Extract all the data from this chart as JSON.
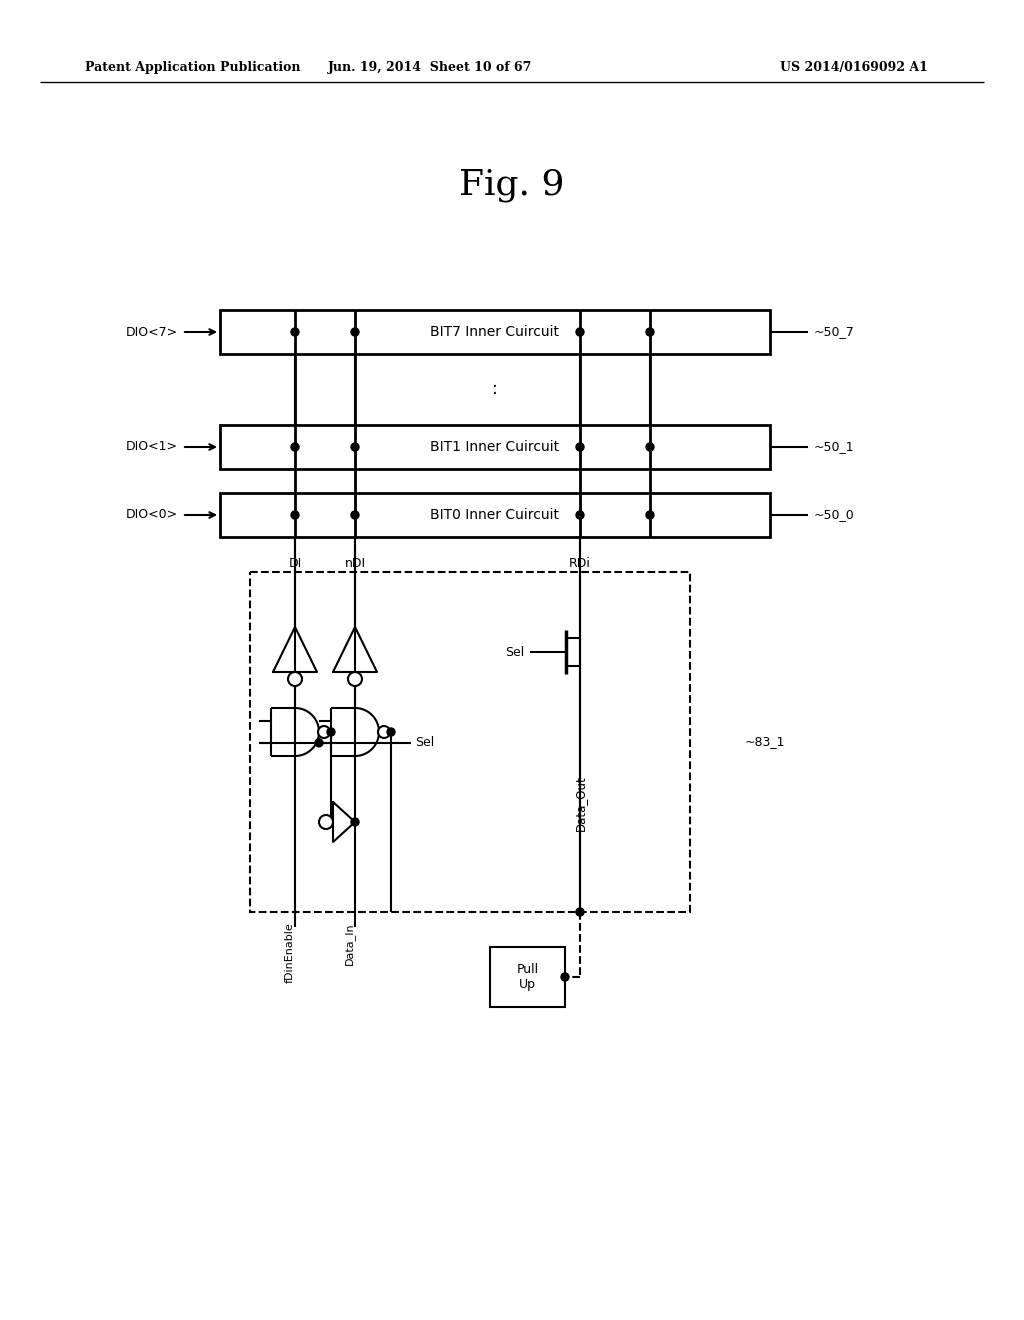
{
  "header_left": "Patent Application Publication",
  "header_mid": "Jun. 19, 2014  Sheet 10 of 67",
  "header_right": "US 2014/0169092 A1",
  "title": "Fig. 9",
  "bg_color": "#ffffff",
  "bit_boxes": [
    {
      "label": "BIT7 Inner Cuircuit",
      "left_label": "DIO<7>",
      "right_label": "~50_7"
    },
    {
      "label": "BIT1 Inner Cuircuit",
      "left_label": "DIO<1>",
      "right_label": "~50_1"
    },
    {
      "label": "BIT0 Inner Cuircuit",
      "left_label": "DIO<0>",
      "right_label": "~50_0"
    }
  ],
  "col_labels": [
    "DI",
    "nDI",
    "RDi"
  ],
  "bottom_labels": [
    "fDinEnable",
    "Data_In"
  ],
  "right_label_83": "~83_1",
  "sel_label": "Sel",
  "data_out_label": "Data_Out",
  "pull_up_label": "Pull\nUp"
}
